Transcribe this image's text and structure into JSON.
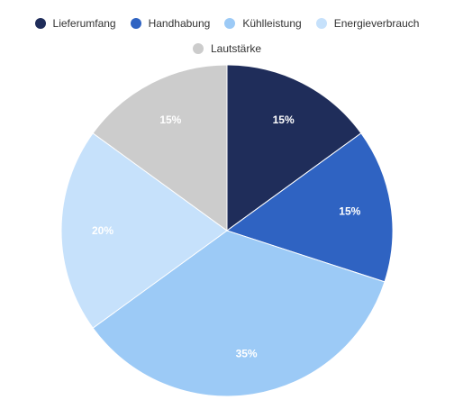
{
  "chart_data": {
    "type": "pie",
    "title": "",
    "legend_position": "top",
    "slices": [
      {
        "name": "Lieferumfang",
        "value": 15,
        "label": "15%",
        "color": "#1f2d5a"
      },
      {
        "name": "Handhabung",
        "value": 15,
        "label": "15%",
        "color": "#2f63c2"
      },
      {
        "name": "Kühlleistung",
        "value": 35,
        "label": "35%",
        "color": "#9ccaf6"
      },
      {
        "name": "Energieverbrauch",
        "value": 20,
        "label": "20%",
        "color": "#c6e1fb"
      },
      {
        "name": "Lautstärke",
        "value": 15,
        "label": "15%",
        "color": "#cccccc"
      }
    ]
  }
}
